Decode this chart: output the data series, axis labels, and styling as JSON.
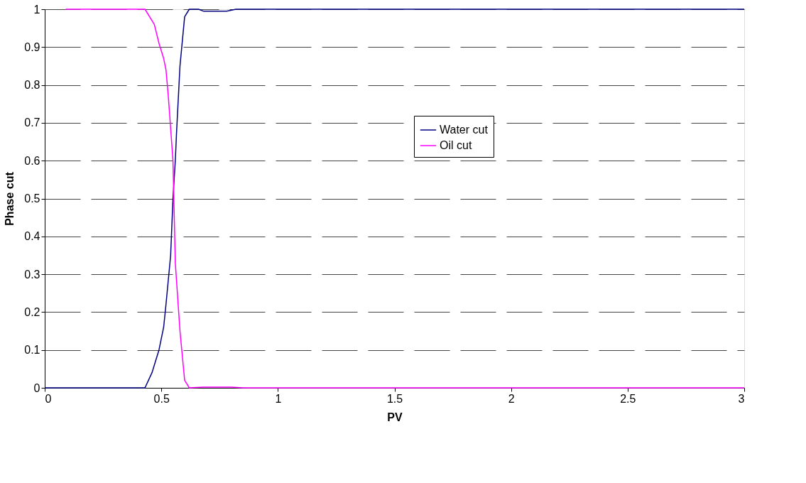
{
  "chart_data": {
    "type": "line",
    "xlabel": "PV",
    "ylabel": "Phase cut",
    "xlim": [
      0,
      3
    ],
    "xticks": [
      0,
      0.5,
      1,
      1.5,
      2,
      2.5,
      3
    ],
    "ylim": [
      0,
      1
    ],
    "yticks": [
      0,
      0.1,
      0.2,
      0.3,
      0.4,
      0.5,
      0.6,
      0.7,
      0.8,
      0.9,
      1
    ],
    "grid": "y",
    "line_style": "solid",
    "marker": "none",
    "legend": "top",
    "series": [
      {
        "name": "Water cut",
        "color": "#000080",
        "x": [
          0,
          0.43,
          0.46,
          0.49,
          0.51,
          0.52,
          0.54,
          0.55,
          0.56,
          0.565,
          0.58,
          0.6,
          0.62,
          0.66,
          0.68,
          0.78,
          0.82,
          3
        ],
        "values": [
          0,
          0,
          0.04,
          0.1,
          0.16,
          0.22,
          0.35,
          0.5,
          0.6,
          0.67,
          0.85,
          0.98,
          1,
          1,
          0.995,
          0.995,
          1,
          1
        ]
      },
      {
        "name": "Oil cut",
        "color": "#ff00ff",
        "x": [
          0.09,
          0.43,
          0.47,
          0.49,
          0.51,
          0.52,
          0.53,
          0.55,
          0.56,
          0.58,
          0.6,
          0.62,
          0.68,
          0.8,
          0.85,
          3
        ],
        "values": [
          1,
          1,
          0.96,
          0.91,
          0.87,
          0.84,
          0.77,
          0.6,
          0.33,
          0.15,
          0.02,
          0,
          0.002,
          0.002,
          0,
          0
        ]
      }
    ]
  }
}
